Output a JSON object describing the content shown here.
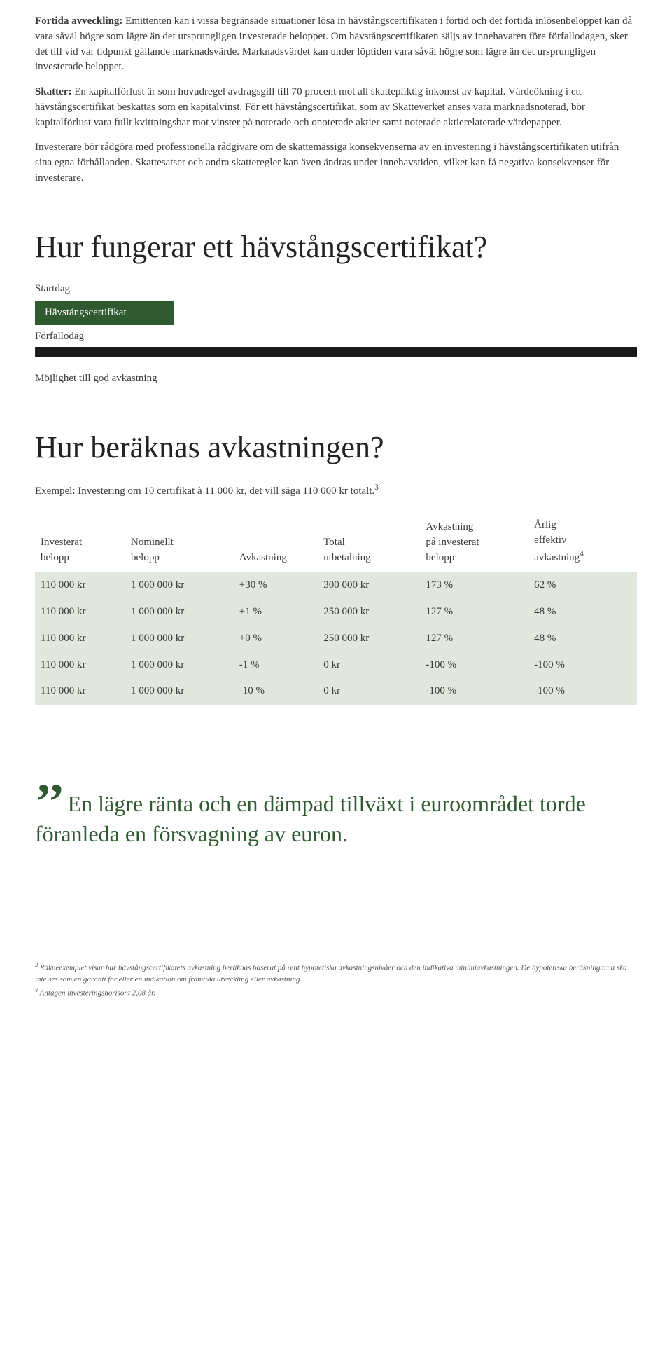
{
  "colors": {
    "green_bar": "#2f5a2f",
    "dark_bar": "#1a1a1a",
    "row_shade": "#e1e7dd",
    "quote_color": "#2f5a2f",
    "text": "#3a3a3a"
  },
  "typography": {
    "body_fontsize": 15,
    "h1_fontsize": 44,
    "quote_fontsize": 32,
    "quote_mark_fontsize": 72,
    "footnote_fontsize": 11
  },
  "paragraphs": {
    "p1_bold": "Förtida avveckling:",
    "p1_rest": " Emittenten kan i vissa begränsade situationer lösa in hävstångscertifikaten i förtid och det förtida inlösenbeloppet kan då vara såväl högre som lägre än det ursprungligen investerade beloppet. Om hävstångscertifikaten säljs av innehavaren före förfallodagen, sker det till vid var tidpunkt gällande marknadsvärde. Marknadsvärdet kan under löptiden vara såväl högre som lägre än det ursprungligen investerade beloppet.",
    "p2_bold": "Skatter:",
    "p2_rest": " En kapitalförlust är som huvudregel avdragsgill till 70 procent mot all skattepliktig inkomst av kapital. Värdeökning i ett hävstångscertifikat beskattas som en kapitalvinst. För ett hävstångscertifikat, som av Skatteverket anses vara marknadsnoterad, bör kapitalförlust vara fullt kvittningsbar mot vinster på noterade och onoterade aktier samt noterade aktierelaterade värdepapper.",
    "p3": "Investerare bör rådgöra med professionella rådgivare om de skattemässiga konsekvenserna av en investering i hävstångscertifikaten utifrån sina egna förhållanden. Skattesatser och andra skatteregler kan även ändras under innehavstiden, vilket kan få negativa konsekvenser för investerare."
  },
  "section1": {
    "title": "Hur fungerar ett hävstångscertifikat?",
    "startdag": "Startdag",
    "cert_label": "Hävstångscertifikat",
    "forfallodag": "Förfallodag",
    "mojlighet": "Möjlighet till god avkastning",
    "green_bar_width_pct": 23
  },
  "section2": {
    "title": "Hur beräknas avkastningen?",
    "intro_pre": "Exempel: Investering om 10 certifikat à 11 000 kr, det vill säga 110 000 kr totalt.",
    "intro_sup": "3",
    "table": {
      "columns": [
        {
          "l1": "Investerat",
          "l2": "belopp"
        },
        {
          "l1": "Nominellt",
          "l2": "belopp"
        },
        {
          "l1": "",
          "l2": "Avkastning"
        },
        {
          "l1": "Total",
          "l2": "utbetalning"
        },
        {
          "l1": "Avkastning",
          "l2": "på investerat",
          "l3": "belopp"
        },
        {
          "l1": "Årlig",
          "l2": "effektiv",
          "l3": "avkastning",
          "sup": "4"
        }
      ],
      "rows": [
        [
          "110 000 kr",
          "1 000 000 kr",
          "+30 %",
          "300 000 kr",
          "173 %",
          "62 %"
        ],
        [
          "110 000 kr",
          "1 000 000 kr",
          "+1 %",
          "250 000 kr",
          "127 %",
          "48 %"
        ],
        [
          "110 000 kr",
          "1 000 000 kr",
          "+0 %",
          "250 000 kr",
          "127 %",
          "48 %"
        ],
        [
          "110 000 kr",
          "1 000 000 kr",
          "-1 %",
          "0 kr",
          "-100 %",
          "-100 %"
        ],
        [
          "110 000 kr",
          "1 000 000 kr",
          "-10 %",
          "0 kr",
          "-100 %",
          "-100 %"
        ]
      ],
      "col_widths_pct": [
        15,
        18,
        14,
        17,
        18,
        18
      ]
    }
  },
  "quote": {
    "mark": "’’",
    "text": "En lägre ränta och en dämpad tillväxt i euroområdet torde föranleda en försvagning av euron."
  },
  "footnotes": {
    "f3_sup": "3",
    "f3": " Räkneexemplet visar hur hävstångscertifikatets avkastning beräknas baserat på rent hypotetiska avkastningsnivåer och den indikativa minimiavkastningen. De hypotetiska beräkningarna ska inte ses som en garanti för eller en indikation om framtida utveckling eller avkastning.",
    "f4_sup": "4",
    "f4": " Antagen investeringshorisont 2,08 år."
  }
}
